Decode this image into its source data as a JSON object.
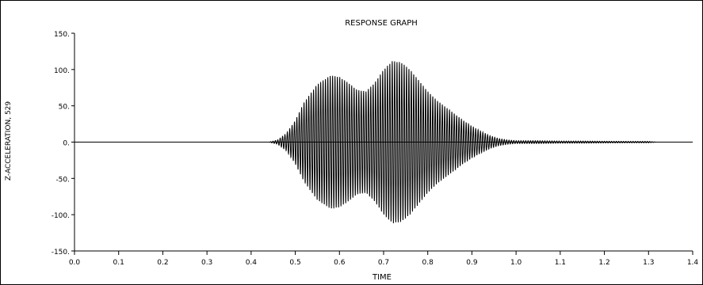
{
  "chart_data": {
    "type": "line",
    "title": "RESPONSE GRAPH",
    "xlabel": "TIME",
    "ylabel": "Z-ACCELERATION, 529",
    "xlim": [
      0.0,
      1.4
    ],
    "ylim": [
      -150,
      150
    ],
    "x_ticks": [
      0.0,
      0.1,
      0.2,
      0.3,
      0.4,
      0.5,
      0.6,
      0.7,
      0.8,
      0.9,
      1.0,
      1.1,
      1.2,
      1.3,
      1.4
    ],
    "x_tick_labels": [
      "0.0",
      "0.1",
      "0.2",
      "0.3",
      "0.4",
      "0.5",
      "0.6",
      "0.7",
      "0.8",
      "0.9",
      "1.0",
      "1.1",
      "1.2",
      "1.3",
      "1.4"
    ],
    "y_ticks": [
      150,
      100,
      50,
      0,
      -50,
      -100,
      -150
    ],
    "y_tick_labels": [
      "150.",
      "100.",
      "50.",
      "0.",
      "-50.",
      "-100.",
      "-150."
    ],
    "grid": false,
    "zero_line": true,
    "series": [
      {
        "color": "#000000",
        "oscillation_period": 0.0054,
        "envelope": {
          "t": [
            0.0,
            0.44,
            0.46,
            0.48,
            0.5,
            0.52,
            0.55,
            0.58,
            0.6,
            0.62,
            0.64,
            0.66,
            0.68,
            0.7,
            0.72,
            0.74,
            0.76,
            0.78,
            0.8,
            0.82,
            0.85,
            0.88,
            0.9,
            0.92,
            0.94,
            0.96,
            0.98,
            1.0,
            1.05,
            1.1,
            1.15,
            1.2,
            1.25,
            1.3,
            1.32,
            1.4
          ],
          "amp": [
            0,
            0,
            3,
            12,
            30,
            55,
            80,
            92,
            90,
            82,
            72,
            70,
            82,
            100,
            112,
            110,
            100,
            85,
            70,
            58,
            44,
            30,
            22,
            15,
            9,
            5,
            3,
            2,
            2,
            1.5,
            1.5,
            1.2,
            1,
            1,
            0,
            0
          ]
        }
      }
    ]
  }
}
